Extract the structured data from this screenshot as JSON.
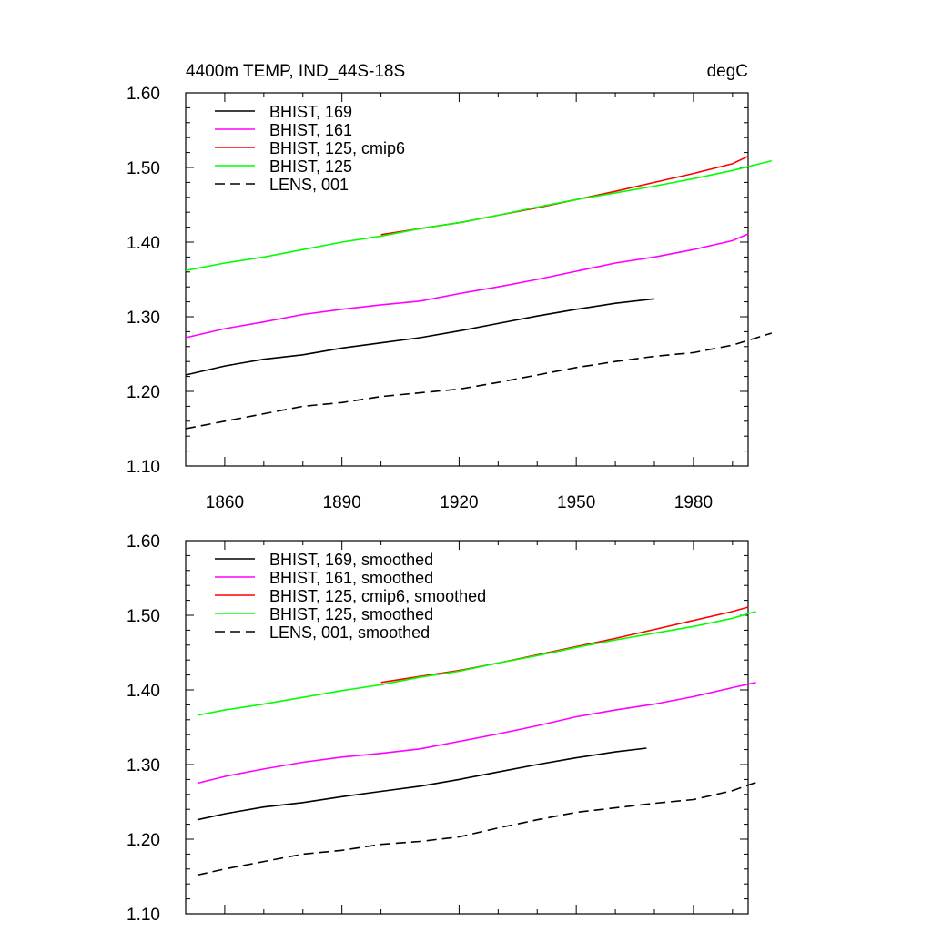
{
  "chart_data": [
    {
      "type": "line",
      "title": "4400m TEMP, IND_44S-18S",
      "units": "degC",
      "xlim": [
        1850,
        1994
      ],
      "ylim": [
        1.1,
        1.6
      ],
      "yticks": [
        "1.10",
        "1.20",
        "1.30",
        "1.40",
        "1.50",
        "1.60"
      ],
      "xticks": [
        "1860",
        "1890",
        "1920",
        "1950",
        "1980"
      ],
      "legend": "top-left",
      "series": [
        {
          "name": "BHIST, 169",
          "color": "#000000",
          "dash": false,
          "x": [
            1850,
            1860,
            1870,
            1880,
            1890,
            1900,
            1910,
            1920,
            1930,
            1940,
            1950,
            1960,
            1970
          ],
          "y": [
            1.222,
            1.234,
            1.243,
            1.249,
            1.258,
            1.265,
            1.272,
            1.281,
            1.291,
            1.301,
            1.31,
            1.318,
            1.324
          ]
        },
        {
          "name": "BHIST, 161",
          "color": "#ff00ff",
          "dash": false,
          "x": [
            1850,
            1860,
            1870,
            1880,
            1890,
            1900,
            1910,
            1920,
            1930,
            1940,
            1950,
            1960,
            1970,
            1980,
            1990,
            1994
          ],
          "y": [
            1.272,
            1.284,
            1.293,
            1.303,
            1.31,
            1.316,
            1.321,
            1.331,
            1.34,
            1.35,
            1.361,
            1.372,
            1.38,
            1.39,
            1.402,
            1.411
          ]
        },
        {
          "name": "BHIST, 125, cmip6",
          "color": "#ff0000",
          "dash": false,
          "x": [
            1900,
            1910,
            1920,
            1930,
            1940,
            1950,
            1960,
            1970,
            1980,
            1990,
            1994
          ],
          "y": [
            1.41,
            1.418,
            1.426,
            1.436,
            1.446,
            1.457,
            1.468,
            1.48,
            1.492,
            1.505,
            1.515
          ]
        },
        {
          "name": "BHIST, 125",
          "color": "#00ff00",
          "dash": false,
          "x": [
            1850,
            1860,
            1870,
            1880,
            1890,
            1900,
            1910,
            1920,
            1930,
            1940,
            1950,
            1960,
            1970,
            1980,
            1990,
            2000
          ],
          "y": [
            1.362,
            1.372,
            1.38,
            1.39,
            1.4,
            1.408,
            1.418,
            1.426,
            1.436,
            1.447,
            1.457,
            1.466,
            1.475,
            1.485,
            1.496,
            1.509
          ]
        },
        {
          "name": "LENS, 001",
          "color": "#000000",
          "dash": true,
          "x": [
            1850,
            1860,
            1870,
            1880,
            1890,
            1900,
            1910,
            1920,
            1930,
            1940,
            1950,
            1960,
            1970,
            1980,
            1990,
            2000
          ],
          "y": [
            1.15,
            1.16,
            1.17,
            1.18,
            1.185,
            1.193,
            1.198,
            1.203,
            1.212,
            1.222,
            1.232,
            1.24,
            1.247,
            1.252,
            1.262,
            1.278
          ]
        }
      ]
    },
    {
      "type": "line",
      "xlim": [
        1850,
        1994
      ],
      "ylim": [
        1.1,
        1.6
      ],
      "yticks": [
        "1.10",
        "1.20",
        "1.30",
        "1.40",
        "1.50",
        "1.60"
      ],
      "legend": "top-left",
      "series": [
        {
          "name": "BHIST, 169, smoothed",
          "color": "#000000",
          "dash": false,
          "x": [
            1853,
            1860,
            1870,
            1880,
            1890,
            1900,
            1910,
            1920,
            1930,
            1940,
            1950,
            1960,
            1968
          ],
          "y": [
            1.226,
            1.234,
            1.243,
            1.249,
            1.257,
            1.264,
            1.271,
            1.28,
            1.29,
            1.3,
            1.309,
            1.317,
            1.322
          ]
        },
        {
          "name": "BHIST, 161, smoothed",
          "color": "#ff00ff",
          "dash": false,
          "x": [
            1853,
            1860,
            1870,
            1880,
            1890,
            1900,
            1910,
            1920,
            1930,
            1940,
            1950,
            1960,
            1970,
            1980,
            1990,
            1996
          ],
          "y": [
            1.275,
            1.284,
            1.294,
            1.303,
            1.31,
            1.315,
            1.321,
            1.331,
            1.341,
            1.352,
            1.364,
            1.373,
            1.381,
            1.391,
            1.403,
            1.41
          ]
        },
        {
          "name": "BHIST, 125, cmip6, smoothed",
          "color": "#ff0000",
          "dash": false,
          "x": [
            1900,
            1910,
            1920,
            1930,
            1940,
            1950,
            1960,
            1970,
            1980,
            1990,
            1994
          ],
          "y": [
            1.41,
            1.418,
            1.426,
            1.436,
            1.447,
            1.458,
            1.469,
            1.481,
            1.493,
            1.505,
            1.511
          ]
        },
        {
          "name": "BHIST, 125, smoothed",
          "color": "#00ff00",
          "dash": false,
          "x": [
            1853,
            1860,
            1870,
            1880,
            1890,
            1900,
            1910,
            1920,
            1930,
            1940,
            1950,
            1960,
            1970,
            1980,
            1990,
            1996
          ],
          "y": [
            1.366,
            1.373,
            1.381,
            1.39,
            1.399,
            1.407,
            1.417,
            1.425,
            1.436,
            1.446,
            1.457,
            1.467,
            1.476,
            1.485,
            1.496,
            1.505
          ]
        },
        {
          "name": "LENS, 001, smoothed",
          "color": "#000000",
          "dash": true,
          "x": [
            1853,
            1860,
            1870,
            1880,
            1890,
            1900,
            1910,
            1920,
            1930,
            1940,
            1950,
            1960,
            1970,
            1980,
            1990,
            1996
          ],
          "y": [
            1.152,
            1.16,
            1.17,
            1.18,
            1.185,
            1.193,
            1.197,
            1.203,
            1.215,
            1.226,
            1.236,
            1.242,
            1.248,
            1.253,
            1.265,
            1.276
          ]
        }
      ]
    }
  ]
}
